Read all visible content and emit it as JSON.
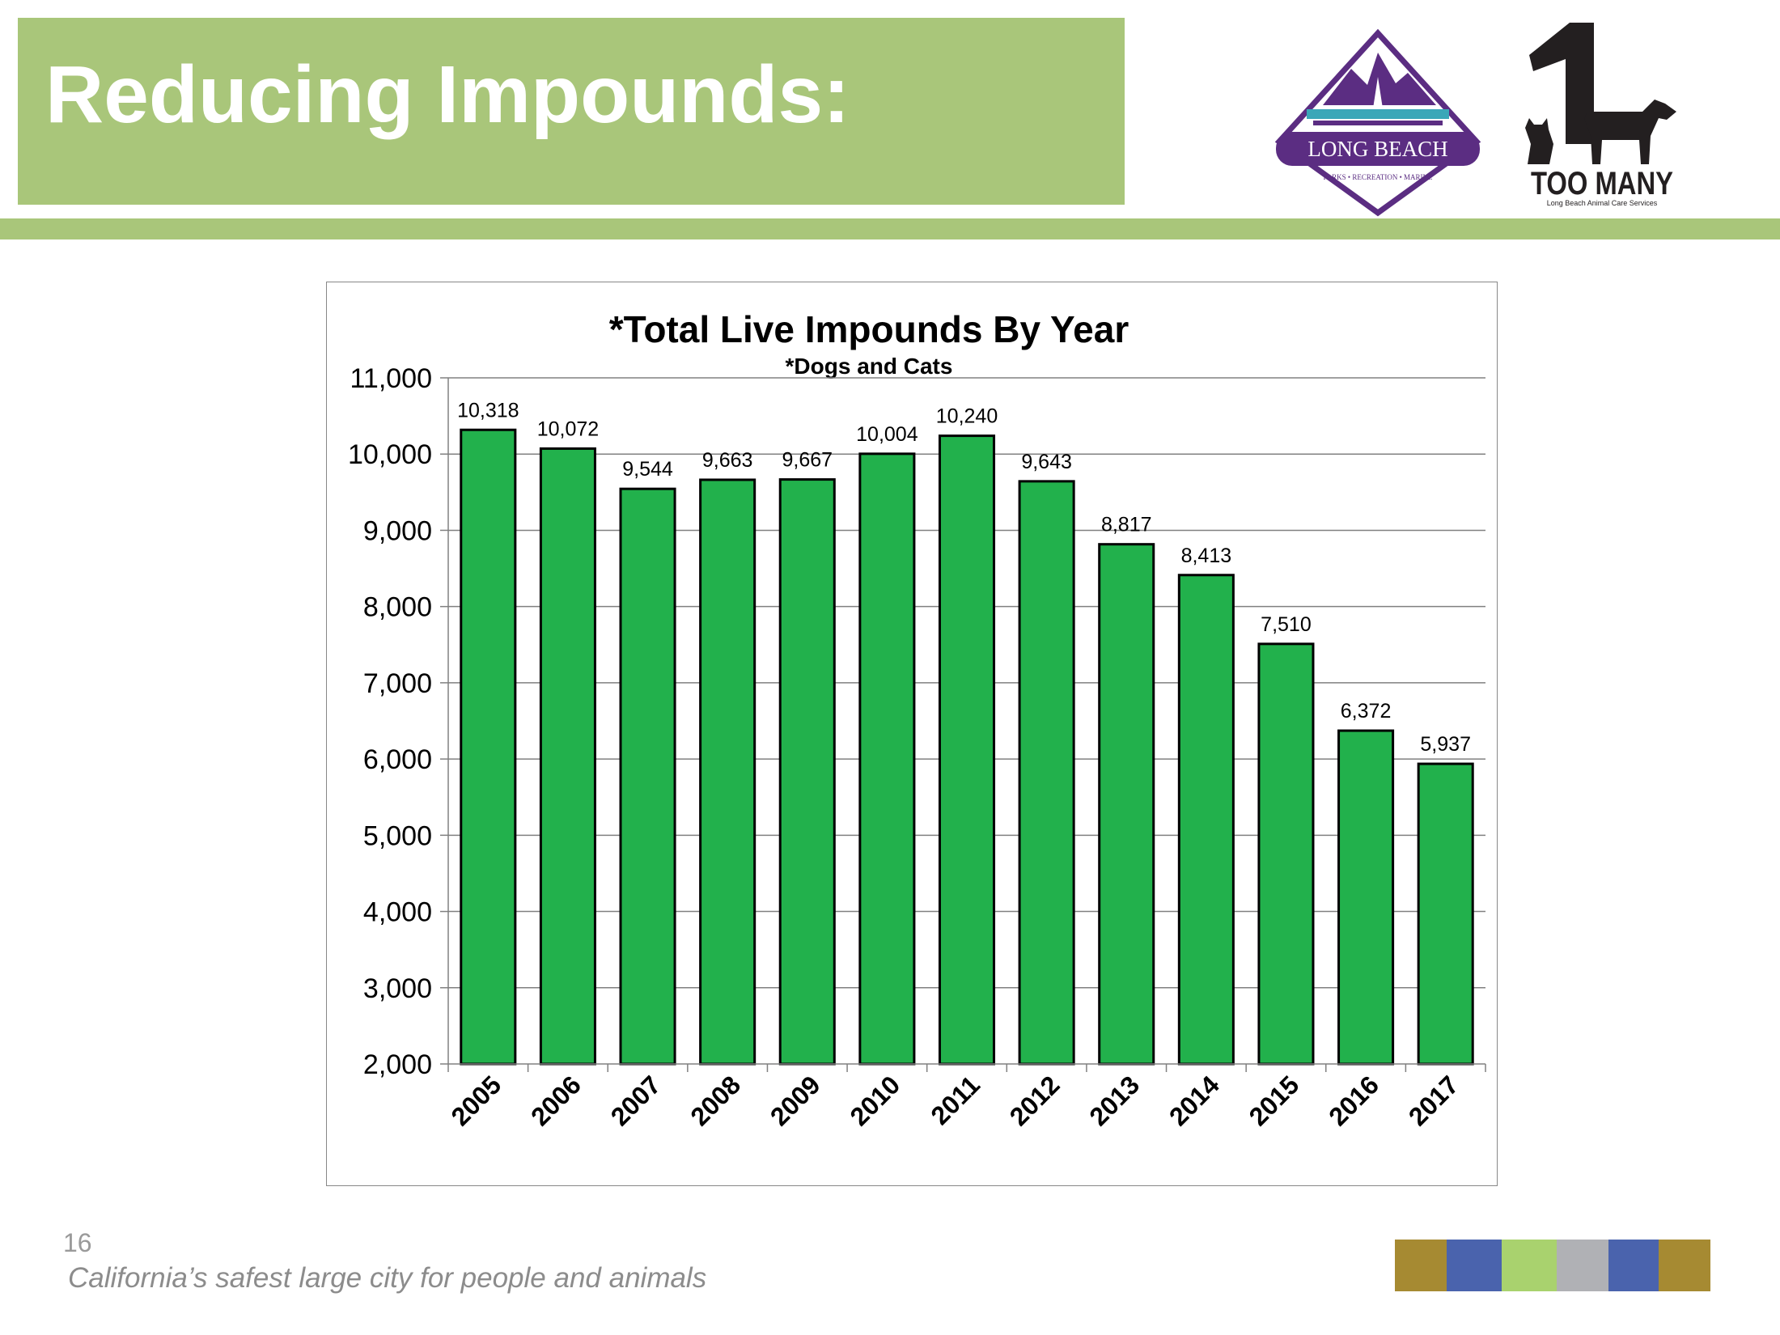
{
  "slide": {
    "title": "Reducing Impounds:",
    "page_number": "16",
    "tagline": "California’s safest large city for people and animals",
    "accent_color": "#a9c67a"
  },
  "logos": {
    "long_beach": {
      "name": "LONG BEACH",
      "sub": "PARKS • RECREATION • MARINE",
      "color": "#5b2d82"
    },
    "one_too_many": {
      "number": "1",
      "name": "TOO MANY",
      "sub": "Long Beach Animal Care Services"
    }
  },
  "footer": {
    "swatches": [
      {
        "name": "swatch-gold",
        "color": "#a68a32"
      },
      {
        "name": "swatch-blue",
        "color": "#4a63ad"
      },
      {
        "name": "swatch-green",
        "color": "#a9d26e"
      },
      {
        "name": "swatch-gray",
        "color": "#b0b1b5"
      },
      {
        "name": "swatch-blue-2",
        "color": "#4a63ad"
      },
      {
        "name": "swatch-gold-2",
        "color": "#a68a32"
      }
    ]
  },
  "chart_data": {
    "type": "bar",
    "title": "*Total Live Impounds By Year",
    "subtitle": "*Dogs and Cats",
    "categories": [
      "2005",
      "2006",
      "2007",
      "2008",
      "2009",
      "2010",
      "2011",
      "2012",
      "2013",
      "2014",
      "2015",
      "2016",
      "2017"
    ],
    "values": [
      10318,
      10072,
      9544,
      9663,
      9667,
      10004,
      10240,
      9643,
      8817,
      8413,
      7510,
      6372,
      5937
    ],
    "data_labels": [
      "10,318",
      "10,072",
      "9,544",
      "9,663",
      "9,667",
      "10,004",
      "10,240",
      "9,643",
      "8,817",
      "8,413",
      "7,510",
      "6,372",
      "5,937"
    ],
    "yticks": [
      2000,
      3000,
      4000,
      5000,
      6000,
      7000,
      8000,
      9000,
      10000,
      11000
    ],
    "ytick_labels": [
      "2,000",
      "3,000",
      "4,000",
      "5,000",
      "6,000",
      "7,000",
      "8,000",
      "9,000",
      "10,000",
      "11,000"
    ],
    "ylim": [
      2000,
      11000
    ],
    "grid": true,
    "legend": "none",
    "bar_color": "#22b14c",
    "xlabel": "",
    "ylabel": ""
  }
}
